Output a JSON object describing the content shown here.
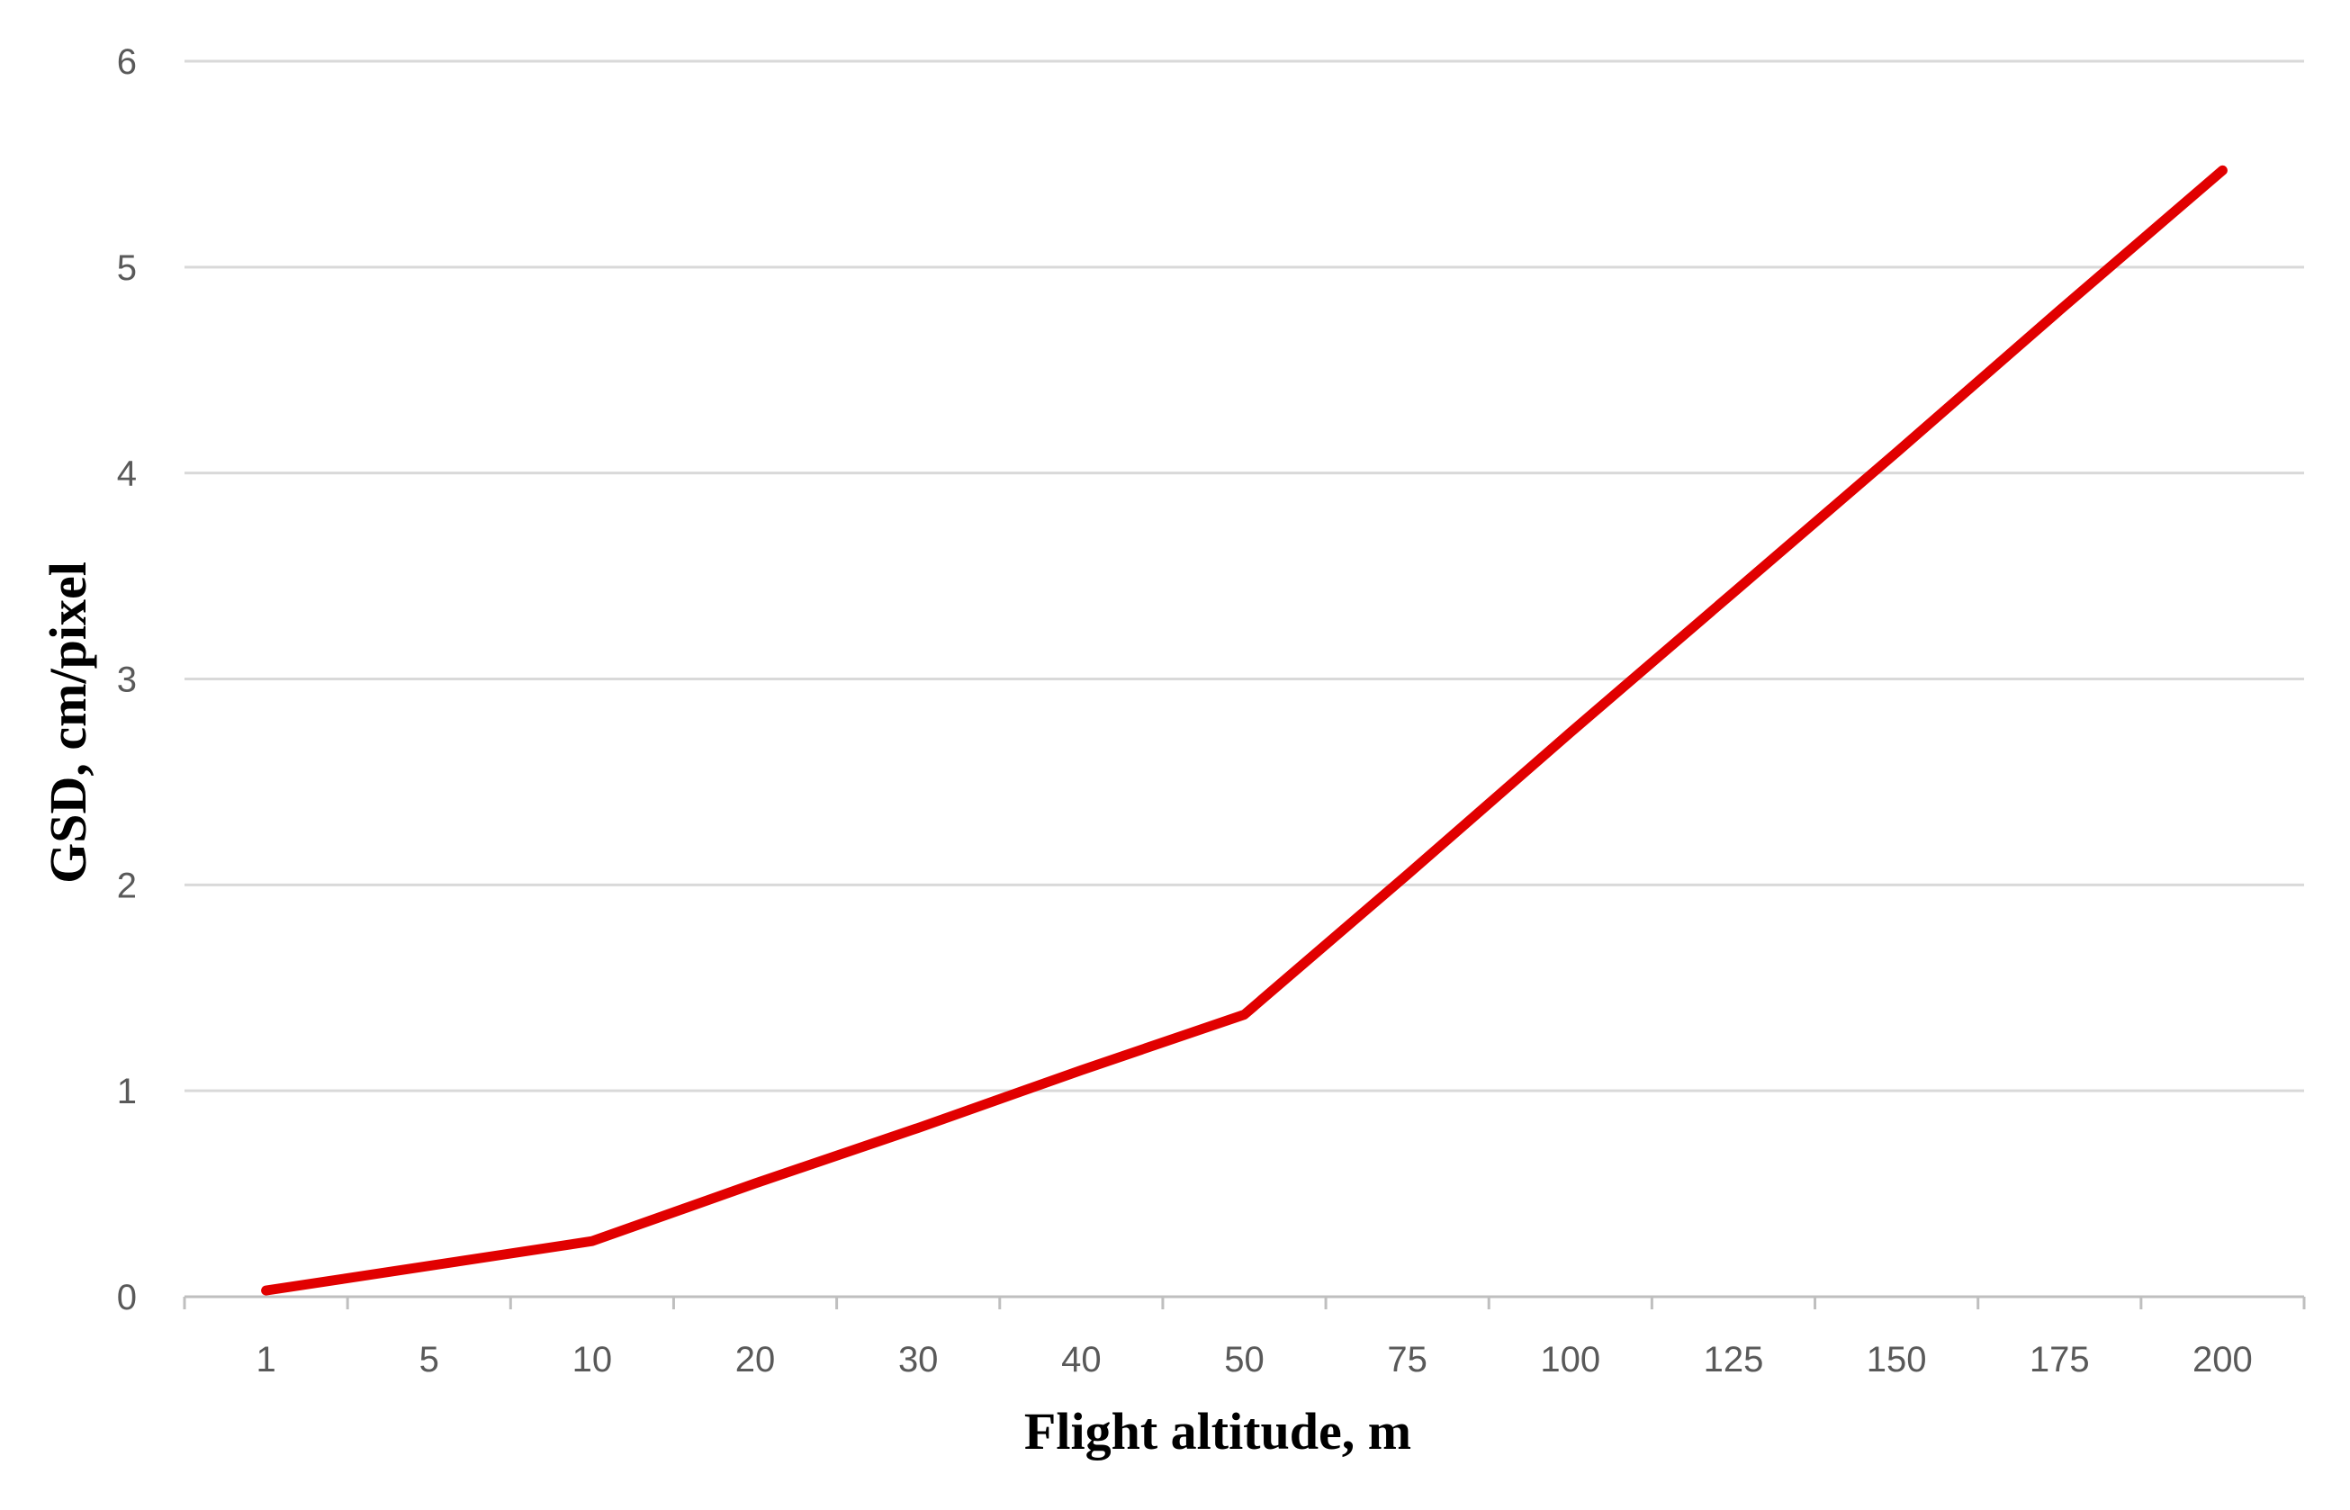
{
  "chart_data": {
    "type": "line",
    "title": "",
    "xlabel": "Flight altitude, m",
    "ylabel": "GSD, cm/pixel",
    "categories": [
      "1",
      "5",
      "10",
      "20",
      "30",
      "40",
      "50",
      "75",
      "100",
      "125",
      "150",
      "175",
      "200"
    ],
    "series": [
      {
        "color": "#e10000",
        "values": [
          0.03,
          0.15,
          0.27,
          0.55,
          0.82,
          1.1,
          1.37,
          2.05,
          2.74,
          3.42,
          4.1,
          4.79,
          5.47
        ]
      }
    ],
    "ylim": [
      0,
      6
    ],
    "yticks": [
      "0",
      "1",
      "2",
      "3",
      "4",
      "5",
      "6"
    ],
    "grid": true,
    "legend": "none"
  }
}
